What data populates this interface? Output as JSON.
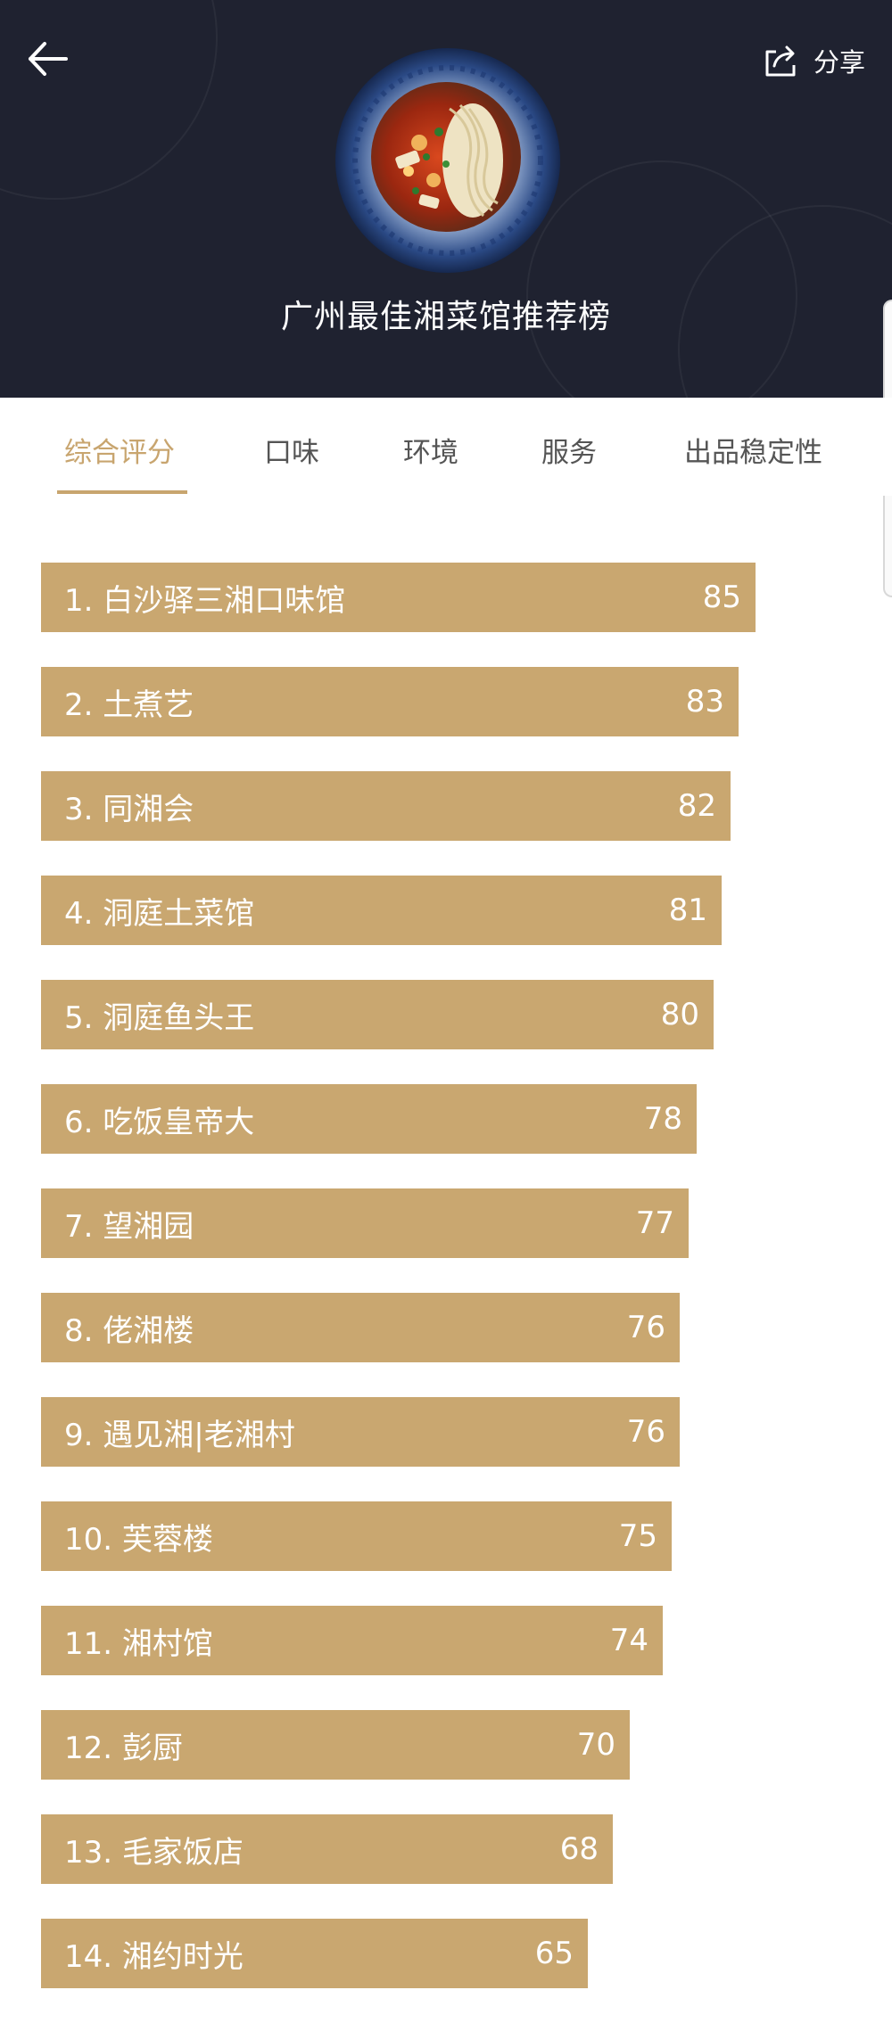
{
  "header": {
    "title": "广州最佳湘菜馆推荐榜",
    "share_label": "分享",
    "back_icon": "arrow-left-icon",
    "share_icon": "share-icon",
    "background_color": "#1f2230"
  },
  "tabs": [
    {
      "label": "综合评分",
      "active": true
    },
    {
      "label": "口味",
      "active": false
    },
    {
      "label": "环境",
      "active": false
    },
    {
      "label": "服务",
      "active": false
    },
    {
      "label": "出品稳定性",
      "active": false
    }
  ],
  "accent_color": "#c9a770",
  "ranking": [
    {
      "label": "1. 白沙驿三湘口味馆",
      "score": 85
    },
    {
      "label": "2. 土煮艺",
      "score": 83
    },
    {
      "label": "3. 同湘会",
      "score": 82
    },
    {
      "label": "4. 洞庭土菜馆",
      "score": 81
    },
    {
      "label": "5. 洞庭鱼头王",
      "score": 80
    },
    {
      "label": "6. 吃饭皇帝大",
      "score": 78
    },
    {
      "label": "7. 望湘园",
      "score": 77
    },
    {
      "label": "8. 佬湘楼",
      "score": 76
    },
    {
      "label": "9. 遇见湘|老湘村",
      "score": 76
    },
    {
      "label": "10. 芙蓉楼",
      "score": 75
    },
    {
      "label": "11. 湘村馆",
      "score": 74
    },
    {
      "label": "12. 彭厨",
      "score": 70
    },
    {
      "label": "13. 毛家饭店",
      "score": 68
    },
    {
      "label": "14. 湘约时光",
      "score": 65
    }
  ]
}
